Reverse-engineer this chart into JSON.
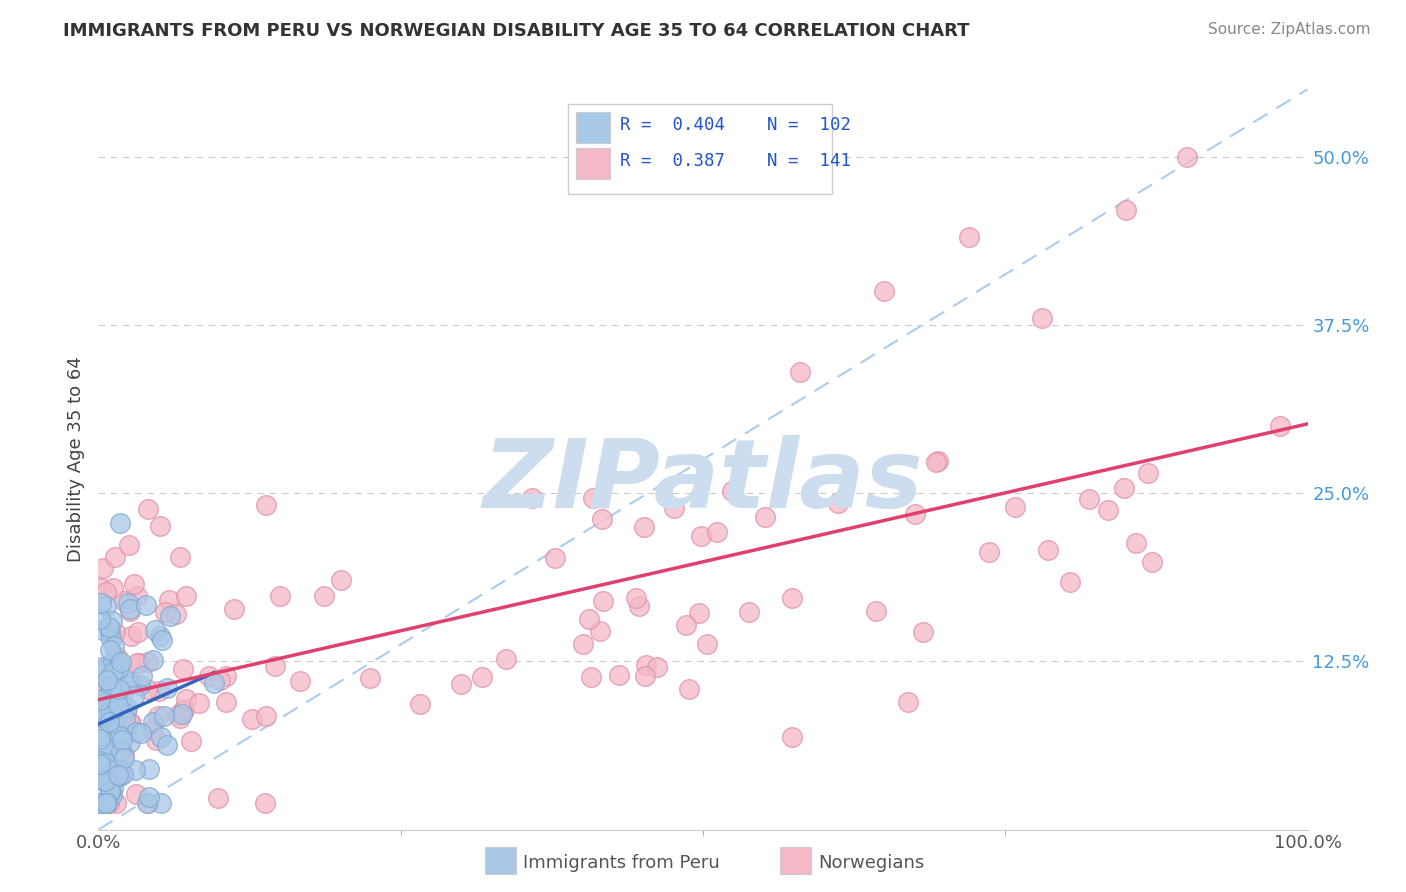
{
  "title": "IMMIGRANTS FROM PERU VS NORWEGIAN DISABILITY AGE 35 TO 64 CORRELATION CHART",
  "source_text": "Source: ZipAtlas.com",
  "ylabel": "Disability Age 35 to 64",
  "xlim": [
    0.0,
    1.0
  ],
  "ylim": [
    0.0,
    0.55
  ],
  "xtick_labels": [
    "0.0%",
    "100.0%"
  ],
  "ytick_labels_right": [
    "50.0%",
    "37.5%",
    "25.0%",
    "12.5%"
  ],
  "ytick_vals_right": [
    0.5,
    0.375,
    0.25,
    0.125
  ],
  "legend_R1": "R = 0.404",
  "legend_N1": "N = 102",
  "legend_R2": "R = 0.387",
  "legend_N2": "N = 141",
  "color_peru": "#a8c8e8",
  "color_peru_edge": "#80a8d0",
  "color_norway": "#f4b8c8",
  "color_norway_edge": "#e090a8",
  "trendline_peru_color": "#3366bb",
  "trendline_norway_color": "#e04070",
  "diagonal_color": "#aaccee",
  "background_color": "#ffffff",
  "grid_color": "#cccccc",
  "watermark_color": "#ccddf0",
  "ytick_color": "#4499dd",
  "title_color": "#333333",
  "source_color": "#888888",
  "legend_border": "#cccccc"
}
